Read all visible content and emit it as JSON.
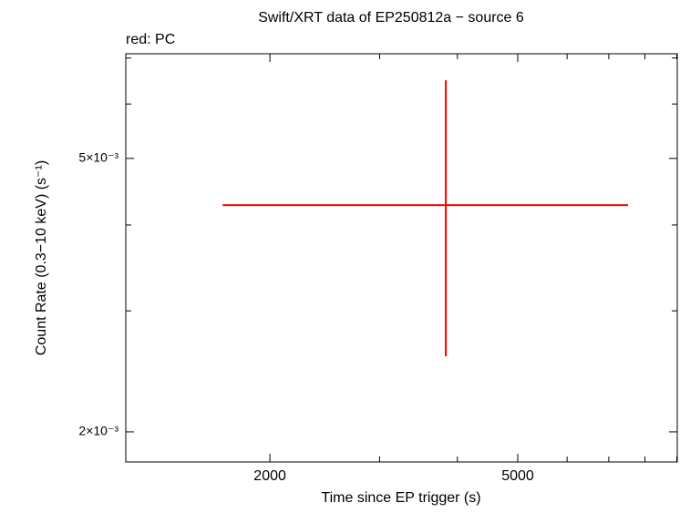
{
  "chart_data": {
    "type": "errorbar",
    "title": "Swift/XRT data of EP250812a − source 6",
    "subtitle": "red: PC",
    "x_label": "Time since EP trigger (s)",
    "y_label": "Count Rate (0.3−10 keV) (s⁻¹)",
    "log_x": true,
    "log_y": true,
    "xlim": [
      1174,
      9016
    ],
    "ylim": [
      0.001808,
      0.0071
    ],
    "xticks": [
      2000,
      5000
    ],
    "x_minor_ticks": [
      3000,
      4000,
      6000,
      7000,
      8000,
      9000
    ],
    "yticks": [
      {
        "value": 0.002,
        "label": "2×10⁻³"
      },
      {
        "value": 0.005,
        "label": "5×10⁻³"
      }
    ],
    "y_minor_ticks": [
      0.003,
      0.004,
      0.006,
      0.007
    ],
    "series": [
      {
        "color": "#ff0000",
        "x": [
          3832
        ],
        "xerr_minus": [
          2153
        ],
        "xerr_plus": [
          3685
        ],
        "values": [
          0.004276
        ],
        "yerr_minus": [
          0.0017
        ],
        "yerr_plus": [
          0.00222
        ]
      }
    ]
  }
}
